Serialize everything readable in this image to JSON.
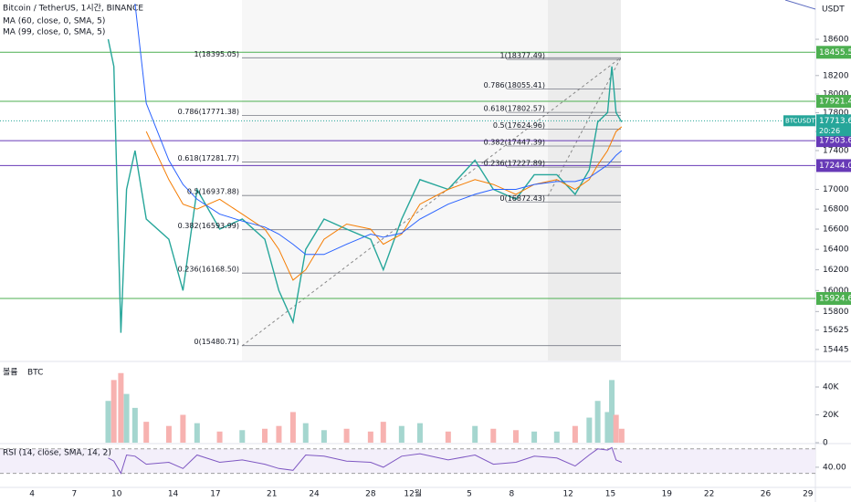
{
  "chart_data": [
    {
      "type": "line",
      "title": "Bitcoin / TetherUS, 1시간, BINANCE",
      "y_label": "USDT",
      "log": true,
      "x": [
        8.4,
        8.8,
        9.3,
        9.7,
        10.3,
        11.1,
        12.7,
        13.7,
        14.7,
        16.3,
        17.9,
        19.5,
        20.5,
        21.5,
        22.4,
        23.7,
        25.3,
        27.0,
        27.9,
        29.2,
        30.5,
        32.5,
        34.4,
        35.7,
        37.3,
        38.6,
        40.2,
        41.5,
        42.5,
        43.1,
        43.8,
        44.1,
        44.4,
        44.8
      ],
      "series": [
        {
          "name": "BTCUSDT",
          "color": "#26a69a",
          "values": [
            18600,
            18300,
            15600,
            17000,
            17400,
            16700,
            16500,
            16000,
            17000,
            16600,
            16700,
            16500,
            16000,
            15700,
            16400,
            16700,
            16600,
            16500,
            16200,
            16700,
            17100,
            17000,
            17300,
            17000,
            16900,
            17150,
            17150,
            16950,
            17200,
            17700,
            17800,
            18300,
            17800,
            17700
          ]
        },
        {
          "name": "MA (60, close, 0, SMA, 5)",
          "color": "#f57c00",
          "values": [
            null,
            null,
            null,
            null,
            null,
            17600,
            17100,
            16850,
            16800,
            16900,
            16750,
            16600,
            16400,
            16100,
            16200,
            16500,
            16650,
            16600,
            16450,
            16550,
            16850,
            17000,
            17100,
            17050,
            16950,
            17050,
            17100,
            17000,
            17100,
            17250,
            17400,
            17500,
            17600,
            17650
          ]
        },
        {
          "name": "MA (99, close, 0, SMA, 5)",
          "color": "#2962ff",
          "values": [
            null,
            null,
            null,
            null,
            19000,
            17900,
            17300,
            17050,
            16900,
            16750,
            16680,
            16620,
            16550,
            16450,
            16350,
            16350,
            16450,
            16550,
            16520,
            16560,
            16700,
            16850,
            16950,
            17000,
            17000,
            17050,
            17080,
            17080,
            17120,
            17180,
            17250,
            17300,
            17350,
            17400
          ]
        }
      ],
      "xlim": [
        0.73,
        58.53
      ],
      "ylim": [
        15343,
        19043
      ],
      "xticks": [
        {
          "value": 3,
          "label": "4"
        },
        {
          "value": 6,
          "label": "7"
        },
        {
          "value": 9,
          "label": "10"
        },
        {
          "value": 13,
          "label": "14"
        },
        {
          "value": 16,
          "label": "17"
        },
        {
          "value": 20,
          "label": "21"
        },
        {
          "value": 23,
          "label": "24"
        },
        {
          "value": 27,
          "label": "28"
        },
        {
          "value": 30,
          "label": "12월"
        },
        {
          "value": 34,
          "label": "5"
        },
        {
          "value": 37,
          "label": "8"
        },
        {
          "value": 41,
          "label": "12"
        },
        {
          "value": 44,
          "label": "15"
        },
        {
          "value": 48,
          "label": "19"
        },
        {
          "value": 51,
          "label": "22"
        },
        {
          "value": 55,
          "label": "26"
        },
        {
          "value": 58,
          "label": "29"
        }
      ],
      "yticks": [
        18600,
        18200,
        18000,
        17800,
        17600,
        17400,
        17000,
        16800,
        16600,
        16400,
        16200,
        16000,
        15800,
        15625,
        15445
      ],
      "price_lines": [
        {
          "value": 18455.59,
          "color": "#4caf50"
        },
        {
          "value": 17921.41,
          "color": "#4caf50"
        },
        {
          "value": 17503.6,
          "label": "17503.60",
          "color": "#673ab7"
        },
        {
          "value": 17244.06,
          "color": "#673ab7"
        },
        {
          "value": 15924.67,
          "color": "#4caf50"
        }
      ],
      "fib_left": [
        {
          "value": 18395.05,
          "label": "1(18395.05)"
        },
        {
          "value": 17771.38,
          "label": "0.786(17771.38)"
        },
        {
          "value": 17281.77,
          "label": "0.618(17281.77)"
        },
        {
          "value": 16937.88,
          "label": "0.5(16937.88)"
        },
        {
          "value": 16593.99,
          "label": "0.382(16593.99)"
        },
        {
          "value": 16168.5,
          "label": "0.236(16168.50)"
        },
        {
          "value": 15480.71,
          "label": "0(15480.71)"
        }
      ],
      "fib_right": [
        {
          "value": 18377.49,
          "label": "1(18377.49)"
        },
        {
          "value": 18055.41,
          "label": "0.786(18055.41)"
        },
        {
          "value": 17802.57,
          "label": "0.618(17802.57)"
        },
        {
          "value": 17624.96,
          "label": "0.5(17624.96)"
        },
        {
          "value": 17447.39,
          "label": "0.382(17447.39)"
        },
        {
          "value": 17227.89,
          "label": "0.236(17227.89)"
        },
        {
          "value": 16872.43,
          "label": "0(16872.43)"
        }
      ],
      "last_price": {
        "value": 17713.6,
        "label": "17713.60"
      },
      "countdown": "20:26"
    },
    {
      "type": "bar",
      "title": "볼륨",
      "subtitle": "BTC",
      "up_color": "#a5d6cf",
      "down_color": "#f7b2b0",
      "values": [
        30000,
        45000,
        50000,
        35000,
        25000,
        15000,
        12000,
        20000,
        14000,
        8000,
        9000,
        10000,
        12000,
        22000,
        14000,
        9000,
        10000,
        8000,
        15000,
        12000,
        14000,
        8000,
        12000,
        10000,
        9000,
        8000,
        8000,
        12000,
        18000,
        30000,
        22000,
        45000,
        20000,
        10000
      ],
      "ylim": [
        0,
        57700
      ],
      "yticks": [
        {
          "value": 40000,
          "label": "40K"
        },
        {
          "value": 20000,
          "label": "20K"
        },
        0
      ]
    },
    {
      "type": "line",
      "title": "RSI (14, close, SMA, 14, 2)",
      "color": "#7e57c2",
      "values": [
        55,
        50,
        30,
        60,
        58,
        45,
        48,
        38,
        60,
        48,
        52,
        45,
        38,
        35,
        60,
        58,
        50,
        48,
        40,
        58,
        62,
        52,
        60,
        45,
        48,
        58,
        55,
        42,
        60,
        70,
        68,
        72,
        52,
        48
      ],
      "bands": [
        70,
        30
      ],
      "ylim": [
        8.6,
        77.1
      ],
      "yticks": [
        {
          "value": 40,
          "label": "40.00"
        }
      ]
    }
  ]
}
